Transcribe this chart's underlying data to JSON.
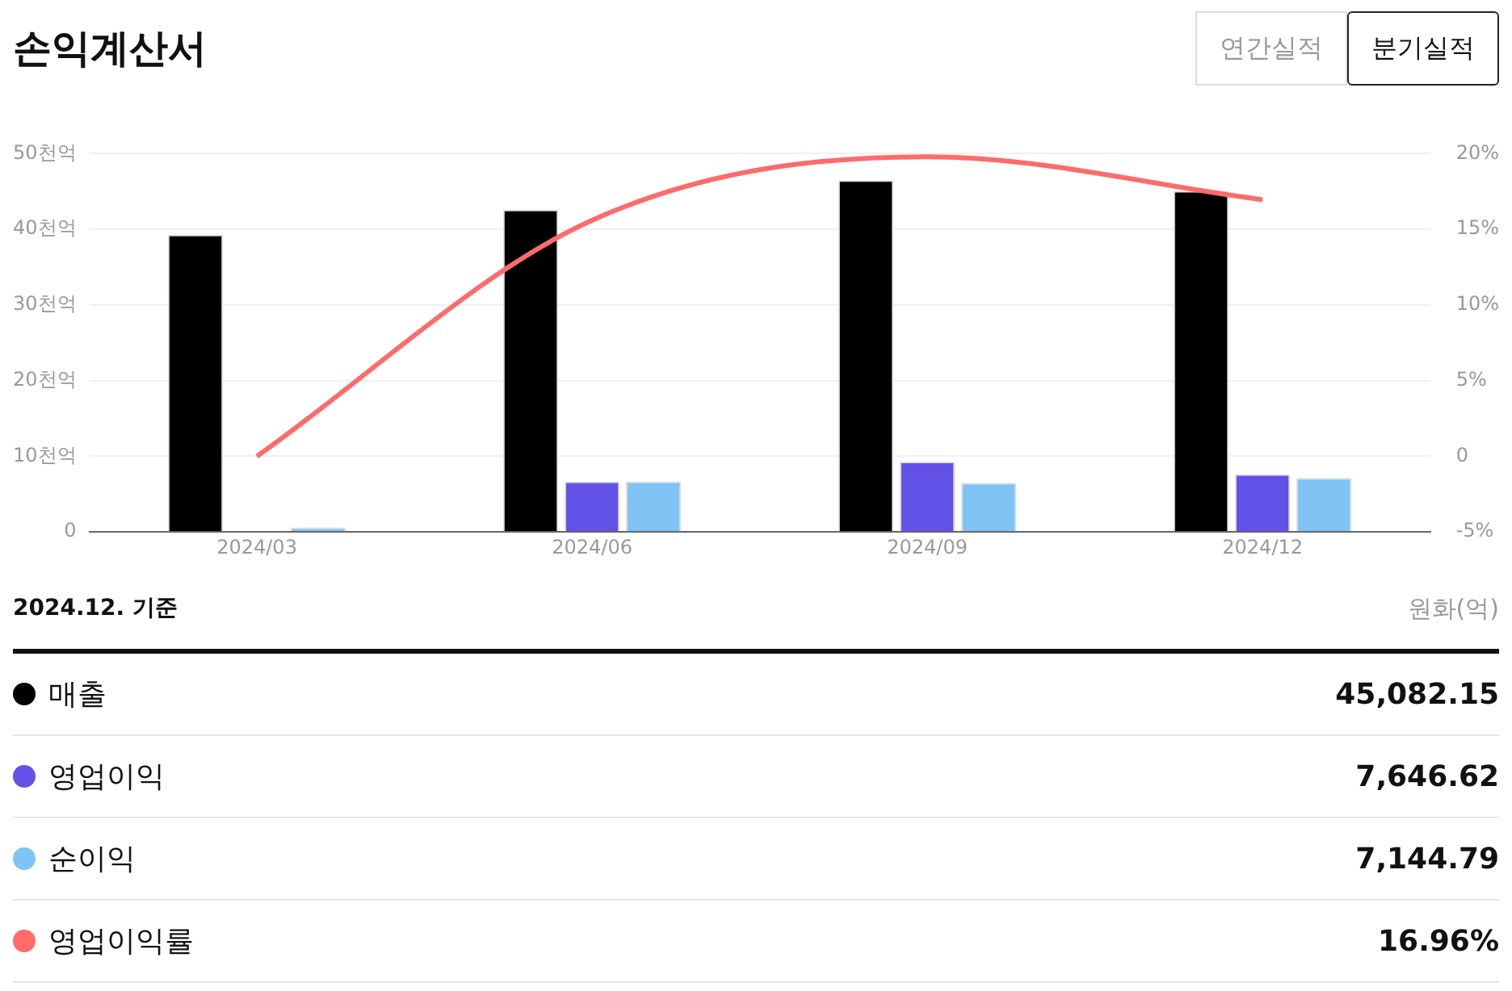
{
  "chart_data": {
    "type": "bar",
    "title": "손익계산서",
    "categories": [
      "2024/03",
      "2024/06",
      "2024/09",
      "2024/12"
    ],
    "series": [
      {
        "name": "매출",
        "color": "#000000",
        "values": [
          39.3,
          42.6,
          46.5,
          45.08
        ]
      },
      {
        "name": "영업이익",
        "color": "#6352e8",
        "values": [
          0,
          6.7,
          9.3,
          7.65
        ]
      },
      {
        "name": "순이익",
        "color": "#7fc4f5",
        "values": [
          0.6,
          6.7,
          6.5,
          7.14
        ]
      },
      {
        "name": "영업이익률",
        "type": "line",
        "axis": "y2",
        "color": "#ff6b6b",
        "values": [
          0,
          15.6,
          19.8,
          16.96
        ]
      }
    ],
    "ylim": [
      0,
      50
    ],
    "yticks": [
      0,
      {
        "value": 10,
        "label": "10천억"
      },
      {
        "value": 20,
        "label": "20천억"
      },
      {
        "value": 30,
        "label": "30천억"
      },
      {
        "value": 40,
        "label": "40천억"
      },
      {
        "value": 50,
        "label": "50천억"
      }
    ],
    "y2lim": [
      -5,
      20
    ],
    "y2ticks": [
      {
        "value": -5,
        "label": "-5%"
      },
      0,
      {
        "value": 5,
        "label": "5%"
      },
      {
        "value": 10,
        "label": "10%"
      },
      {
        "value": 15,
        "label": "15%"
      },
      {
        "value": 20,
        "label": "20%"
      }
    ],
    "grid": "y",
    "legend": "bottom",
    "marker": "none",
    "line_style": "solid",
    "annotations": [
      "연간실적",
      "분기실적",
      "2024.12. 기준",
      "원화(억)",
      "45,082.15",
      "7,646.62",
      "7,144.79",
      "16.96%"
    ]
  }
}
